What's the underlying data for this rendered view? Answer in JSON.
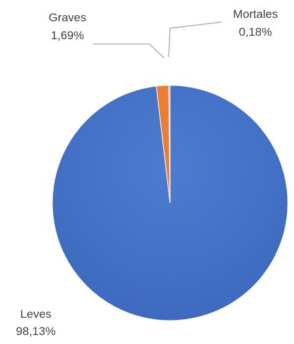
{
  "chart_data": {
    "type": "pie",
    "title": "",
    "categories": [
      "Leves",
      "Graves",
      "Mortales"
    ],
    "values": [
      98.13,
      1.69,
      0.18
    ],
    "value_labels": [
      "98,13%",
      "1,69%",
      "0,18%"
    ],
    "unit": "%",
    "colors": [
      "#4472C4",
      "#ED7D31",
      "#A5A5A5"
    ],
    "legend": "none",
    "label_style": "outside-with-leader-lines"
  }
}
